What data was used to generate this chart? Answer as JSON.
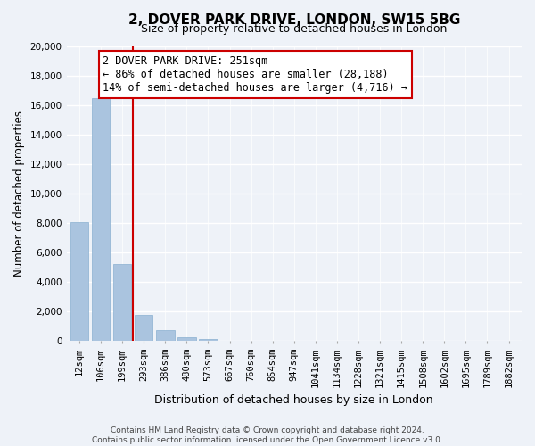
{
  "title": "2, DOVER PARK DRIVE, LONDON, SW15 5BG",
  "subtitle": "Size of property relative to detached houses in London",
  "xlabel": "Distribution of detached houses by size in London",
  "ylabel": "Number of detached properties",
  "bar_labels": [
    "12sqm",
    "106sqm",
    "199sqm",
    "293sqm",
    "386sqm",
    "480sqm",
    "573sqm",
    "667sqm",
    "760sqm",
    "854sqm",
    "947sqm",
    "1041sqm",
    "1134sqm",
    "1228sqm",
    "1321sqm",
    "1415sqm",
    "1508sqm",
    "1602sqm",
    "1695sqm",
    "1789sqm",
    "1882sqm"
  ],
  "bar_values": [
    8100,
    16500,
    5250,
    1800,
    750,
    250,
    150,
    0,
    0,
    0,
    0,
    0,
    0,
    0,
    0,
    0,
    0,
    0,
    0,
    0,
    0
  ],
  "bar_color": "#aac4df",
  "bar_edge_color": "#8ab0d0",
  "annotation_line1": "2 DOVER PARK DRIVE: 251sqm",
  "annotation_line2": "← 86% of detached houses are smaller (28,188)",
  "annotation_line3": "14% of semi-detached houses are larger (4,716) →",
  "vline_color": "#cc0000",
  "annotation_box_color": "#ffffff",
  "annotation_box_edge": "#cc0000",
  "ylim": [
    0,
    20000
  ],
  "yticks": [
    0,
    2000,
    4000,
    6000,
    8000,
    10000,
    12000,
    14000,
    16000,
    18000,
    20000
  ],
  "footer_line1": "Contains HM Land Registry data © Crown copyright and database right 2024.",
  "footer_line2": "Contains public sector information licensed under the Open Government Licence v3.0.",
  "background_color": "#eef2f8",
  "grid_color": "#ffffff",
  "title_fontsize": 11,
  "subtitle_fontsize": 9,
  "ylabel_fontsize": 8.5,
  "xlabel_fontsize": 9,
  "tick_fontsize": 7.5,
  "ann_fontsize": 8.5,
  "footer_fontsize": 6.5
}
